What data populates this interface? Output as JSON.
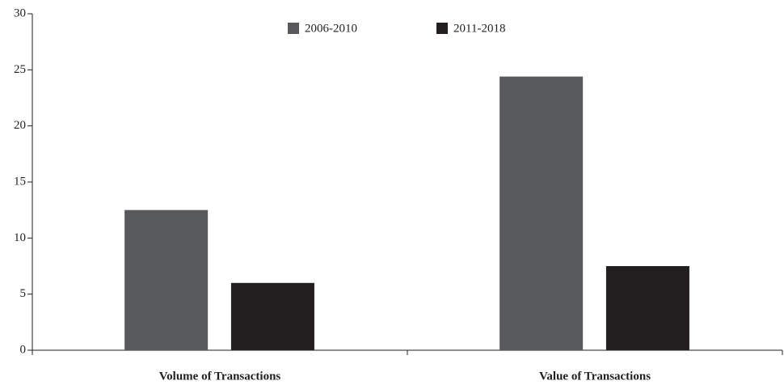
{
  "chart_data": {
    "type": "bar",
    "categories": [
      "Volume of Transactions",
      "Value of Transactions"
    ],
    "series": [
      {
        "name": "2006-2010",
        "color": "#58595b",
        "values": [
          12.5,
          24.4
        ]
      },
      {
        "name": "2011-2018",
        "color": "#231f20",
        "values": [
          6,
          7.5
        ]
      }
    ],
    "ylim": [
      0,
      30
    ],
    "yticks": [
      0,
      5,
      10,
      15,
      20,
      25,
      30
    ],
    "grid": false,
    "legend": "top"
  }
}
